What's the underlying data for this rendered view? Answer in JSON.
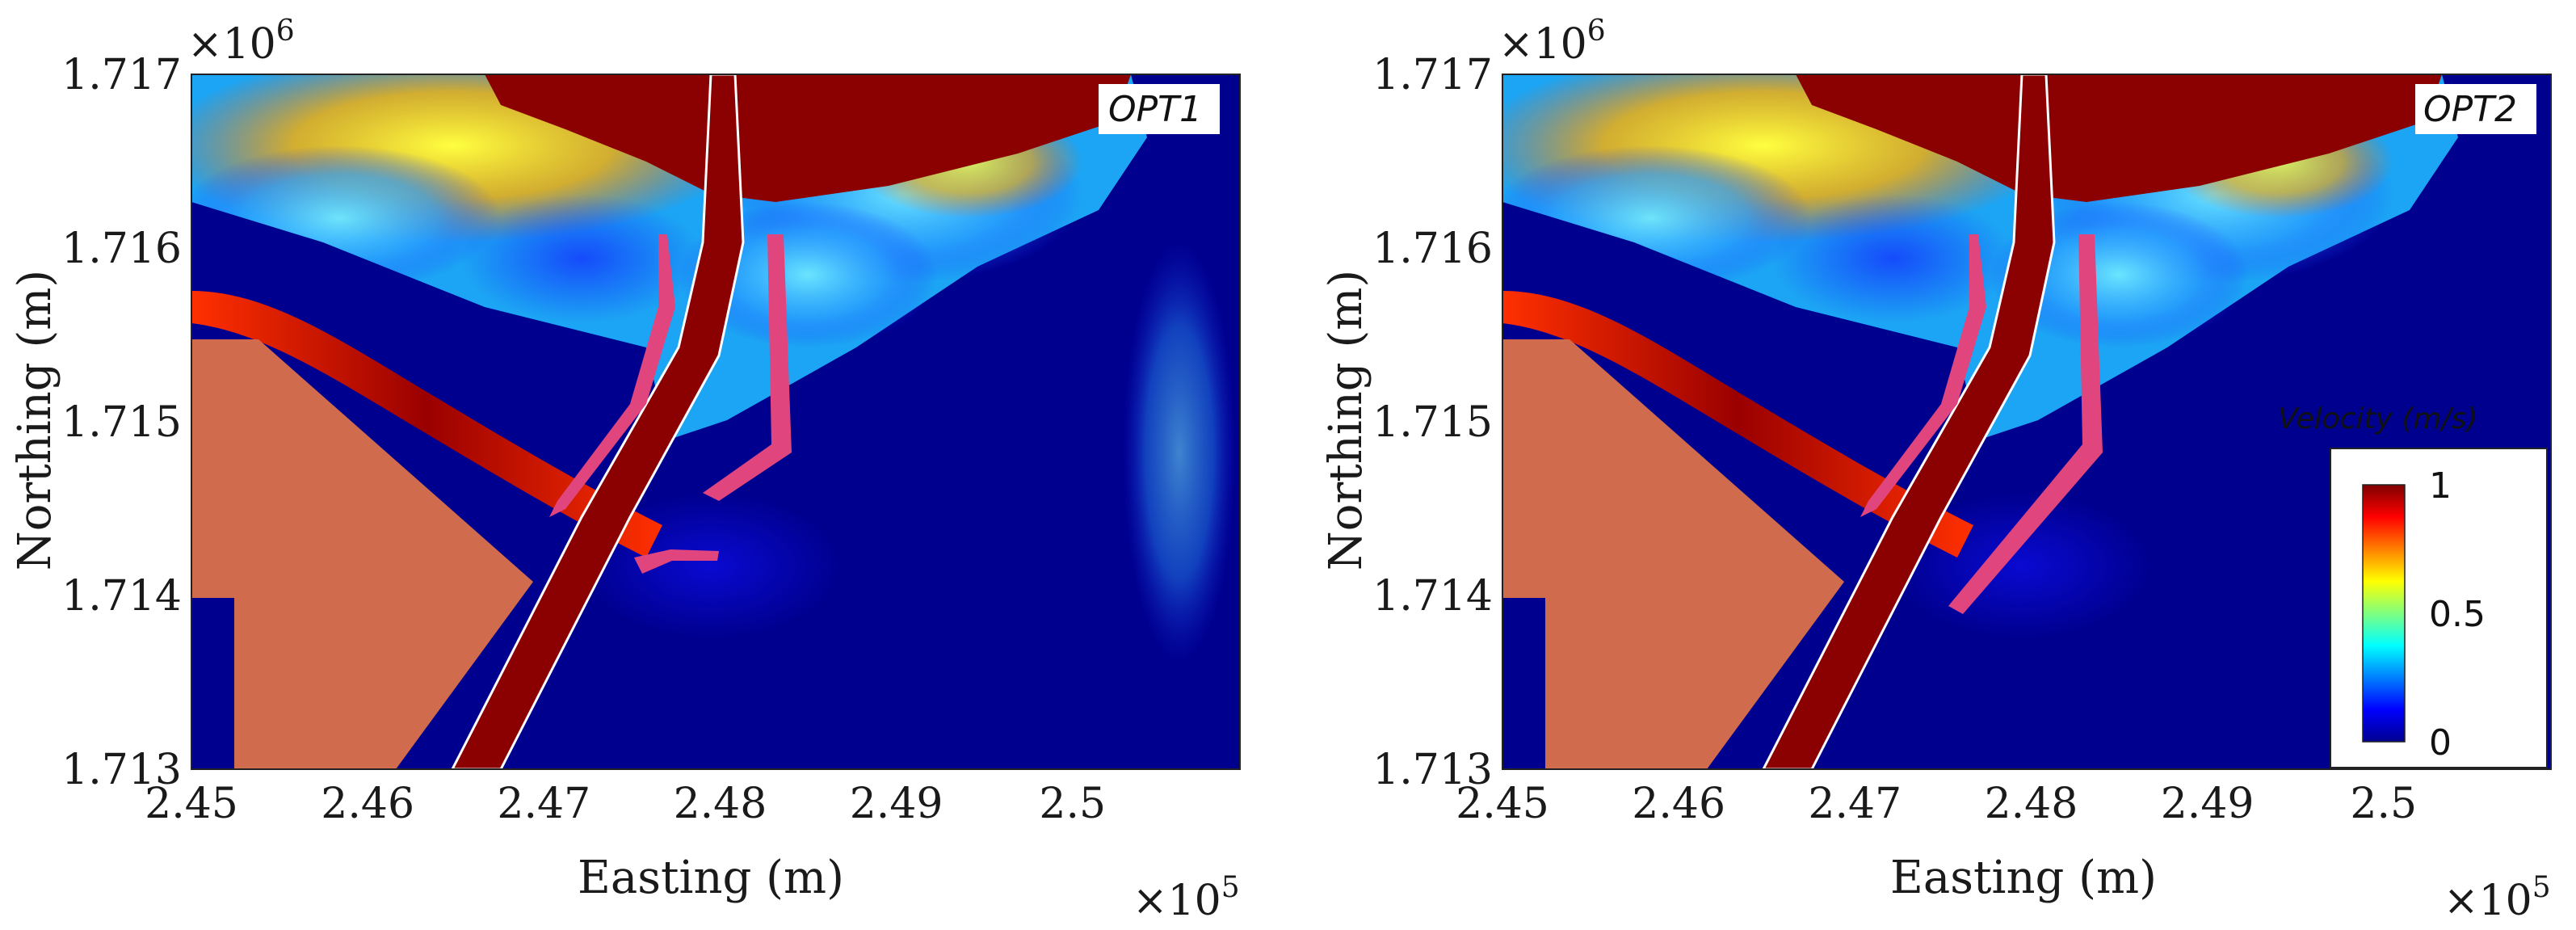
{
  "chart_data": [
    {
      "type": "heatmap",
      "panel_label": "OPT1",
      "xlabel": "Easting (m)",
      "ylabel": "Northing (m)",
      "x_multiplier": "×10",
      "x_multiplier_exp": "5",
      "y_multiplier": "×10",
      "y_multiplier_exp": "6",
      "x_ticks": [
        2.45,
        2.46,
        2.47,
        2.48,
        2.49,
        2.5
      ],
      "x_tick_labels": [
        "2.45",
        "2.46",
        "2.47",
        "2.48",
        "2.49",
        "2.5"
      ],
      "y_ticks": [
        1.713,
        1.714,
        1.715,
        1.716,
        1.717
      ],
      "y_tick_labels": [
        "1.713",
        "1.714",
        "1.715",
        "1.716",
        "1.717"
      ],
      "xlim": [
        2.45,
        2.5095
      ],
      "ylim": [
        1.713,
        1.717
      ]
    },
    {
      "type": "heatmap",
      "panel_label": "OPT2",
      "xlabel": "Easting (m)",
      "ylabel": "Northing (m)",
      "x_multiplier": "×10",
      "x_multiplier_exp": "5",
      "y_multiplier": "×10",
      "y_multiplier_exp": "6",
      "x_ticks": [
        2.45,
        2.46,
        2.47,
        2.48,
        2.49,
        2.5
      ],
      "x_tick_labels": [
        "2.45",
        "2.46",
        "2.47",
        "2.48",
        "2.49",
        "2.5"
      ],
      "y_ticks": [
        1.713,
        1.714,
        1.715,
        1.716,
        1.717
      ],
      "y_tick_labels": [
        "1.713",
        "1.714",
        "1.715",
        "1.716",
        "1.717"
      ],
      "xlim": [
        2.45,
        2.5095
      ],
      "ylim": [
        1.713,
        1.717
      ],
      "colorbar": {
        "title": "Velocity (m/s)",
        "range": [
          0,
          1
        ],
        "ticks": [
          0,
          0.5,
          1
        ],
        "tick_labels": [
          "0",
          "0.5",
          "1"
        ],
        "colormap": "jet"
      }
    }
  ],
  "colors": {
    "deep_water": "#00008f",
    "land": "#d16b4e",
    "structure": "#e0457e",
    "high_velocity": "#8b0000"
  }
}
